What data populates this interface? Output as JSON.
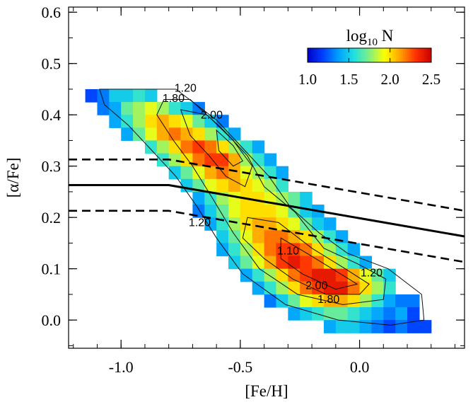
{
  "chart_data": {
    "type": "heatmap",
    "title": "",
    "xlabel": "[Fe/H]",
    "ylabel": "[α/Fe]",
    "xlim": [
      -1.22,
      0.44
    ],
    "ylim": [
      -0.055,
      0.61
    ],
    "x_ticks": [
      {
        "value": -1.0,
        "label": "-1.0"
      },
      {
        "value": -0.5,
        "label": "-0.5"
      },
      {
        "value": 0.0,
        "label": "0.0"
      }
    ],
    "y_ticks": [
      {
        "value": 0.0,
        "label": "0.0"
      },
      {
        "value": 0.1,
        "label": "0.1"
      },
      {
        "value": 0.2,
        "label": "0.2"
      },
      {
        "value": 0.3,
        "label": "0.3"
      },
      {
        "value": 0.4,
        "label": "0.4"
      },
      {
        "value": 0.5,
        "label": "0.5"
      },
      {
        "value": 0.6,
        "label": "0.6"
      }
    ],
    "colorbar": {
      "title": "log",
      "title_subscript": "10",
      "title_suffix": " N",
      "range": [
        1.0,
        2.5
      ],
      "ticks": [
        {
          "value": 1.0,
          "label": "1.0"
        },
        {
          "value": 1.5,
          "label": "1.5"
        },
        {
          "value": 2.0,
          "label": "2.0"
        },
        {
          "value": 2.5,
          "label": "2.5"
        }
      ],
      "colormap": [
        "#0000c8",
        "#0040ff",
        "#00a0ff",
        "#20e0e0",
        "#80f080",
        "#ffff00",
        "#ffa000",
        "#ff3000",
        "#c80000"
      ]
    },
    "density_grid": {
      "bin_width": 0.05,
      "bin_height": 0.025,
      "rows": [
        {
          "alpha": 0.4375,
          "fe_start": -1.125,
          "values": [
            1.2,
            1.3,
            1.5,
            1.5,
            1.6,
            1.5
          ]
        },
        {
          "alpha": 0.4125,
          "fe_start": -1.075,
          "values": [
            1.3,
            1.4,
            1.7,
            1.8,
            1.9,
            1.8,
            1.6,
            1.5,
            1.3
          ]
        },
        {
          "alpha": 0.3875,
          "fe_start": -1.025,
          "values": [
            1.4,
            1.6,
            1.8,
            2.0,
            2.1,
            2.0,
            1.9,
            1.7,
            1.5,
            1.3
          ]
        },
        {
          "alpha": 0.3625,
          "fe_start": -0.975,
          "values": [
            1.4,
            1.7,
            1.9,
            2.1,
            2.2,
            2.1,
            2.0,
            1.8,
            1.6,
            1.4
          ]
        },
        {
          "alpha": 0.3375,
          "fe_start": -0.875,
          "values": [
            1.6,
            1.8,
            2.0,
            2.2,
            2.3,
            2.2,
            2.0,
            1.8,
            1.6,
            1.4
          ]
        },
        {
          "alpha": 0.3125,
          "fe_start": -0.825,
          "values": [
            1.6,
            1.8,
            2.0,
            2.2,
            2.3,
            2.3,
            2.1,
            1.8,
            1.6,
            1.4
          ]
        },
        {
          "alpha": 0.2875,
          "fe_start": -0.775,
          "values": [
            1.5,
            1.7,
            1.9,
            2.1,
            2.2,
            2.1,
            1.9,
            1.8,
            1.6,
            1.4
          ]
        },
        {
          "alpha": 0.2625,
          "fe_start": -0.725,
          "values": [
            1.5,
            1.7,
            1.9,
            2.0,
            2.1,
            2.0,
            1.9,
            1.8,
            1.6
          ]
        },
        {
          "alpha": 0.2375,
          "fe_start": -0.675,
          "values": [
            1.4,
            1.6,
            1.8,
            1.9,
            2.0,
            2.0,
            1.9,
            1.8,
            1.7,
            1.5
          ]
        },
        {
          "alpha": 0.2125,
          "fe_start": -0.675,
          "values": [
            1.3,
            1.5,
            1.7,
            1.9,
            2.0,
            2.0,
            2.0,
            1.9,
            1.7,
            1.5,
            1.4
          ]
        },
        {
          "alpha": 0.1875,
          "fe_start": -0.625,
          "values": [
            1.4,
            1.6,
            1.8,
            2.0,
            2.1,
            2.1,
            2.0,
            1.9,
            1.7,
            1.5,
            1.4
          ]
        },
        {
          "alpha": 0.1625,
          "fe_start": -0.575,
          "values": [
            1.5,
            1.7,
            1.9,
            2.1,
            2.2,
            2.2,
            2.1,
            2.0,
            1.8,
            1.6,
            1.4
          ]
        },
        {
          "alpha": 0.1375,
          "fe_start": -0.575,
          "values": [
            1.4,
            1.6,
            1.8,
            2.0,
            2.2,
            2.3,
            2.3,
            2.2,
            2.0,
            1.8,
            1.6,
            1.4
          ]
        },
        {
          "alpha": 0.1125,
          "fe_start": -0.525,
          "values": [
            1.5,
            1.7,
            1.9,
            2.1,
            2.3,
            2.4,
            2.3,
            2.2,
            2.0,
            1.8,
            1.6,
            1.4
          ]
        },
        {
          "alpha": 0.0875,
          "fe_start": -0.475,
          "values": [
            1.4,
            1.6,
            1.8,
            2.0,
            2.2,
            2.3,
            2.4,
            2.4,
            2.3,
            2.1,
            1.9,
            1.7,
            1.5
          ]
        },
        {
          "alpha": 0.0625,
          "fe_start": -0.425,
          "values": [
            1.4,
            1.6,
            1.8,
            2.0,
            2.2,
            2.3,
            2.4,
            2.4,
            2.2,
            2.0,
            1.8,
            1.6
          ]
        },
        {
          "alpha": 0.0375,
          "fe_start": -0.375,
          "values": [
            1.3,
            1.5,
            1.7,
            1.9,
            2.0,
            2.1,
            2.1,
            2.0,
            1.8,
            1.6,
            1.4,
            1.3,
            1.3
          ]
        },
        {
          "alpha": 0.0125,
          "fe_start": -0.275,
          "values": [
            1.4,
            1.5,
            1.6,
            1.7,
            1.7,
            1.6,
            1.5,
            1.4,
            1.3,
            1.4,
            1.2
          ]
        },
        {
          "alpha": -0.0125,
          "fe_start": -0.125,
          "values": [
            1.4,
            1.5,
            1.5,
            1.4,
            1.3,
            1.2,
            1.3,
            1.2,
            1.2
          ]
        }
      ]
    },
    "separator_lines": [
      {
        "name": "solid",
        "style": "solid",
        "points": [
          [
            -1.22,
            0.263
          ],
          [
            -0.8,
            0.263
          ],
          [
            0.44,
            0.163
          ]
        ]
      },
      {
        "name": "upper-dashed",
        "style": "dashed",
        "points": [
          [
            -1.22,
            0.313
          ],
          [
            -0.8,
            0.313
          ],
          [
            0.44,
            0.213
          ]
        ]
      },
      {
        "name": "lower-dashed",
        "style": "dashed",
        "points": [
          [
            -1.22,
            0.213
          ],
          [
            -0.8,
            0.213
          ],
          [
            0.44,
            0.113
          ]
        ]
      }
    ],
    "contours": [
      {
        "level": 1.2,
        "points": [
          [
            -1.09,
            0.45
          ],
          [
            -0.77,
            0.45
          ],
          [
            -0.6,
            0.39
          ],
          [
            -0.48,
            0.33
          ],
          [
            -0.38,
            0.28
          ],
          [
            -0.29,
            0.22
          ],
          [
            -0.17,
            0.17
          ],
          [
            -0.05,
            0.13
          ],
          [
            0.12,
            0.1
          ],
          [
            0.26,
            0.05
          ],
          [
            0.27,
            0.0
          ],
          [
            0.13,
            -0.01
          ],
          [
            -0.09,
            0.0
          ],
          [
            -0.31,
            0.03
          ],
          [
            -0.49,
            0.09
          ],
          [
            -0.6,
            0.16
          ],
          [
            -0.68,
            0.22
          ],
          [
            -0.77,
            0.28
          ],
          [
            -0.87,
            0.33
          ],
          [
            -0.97,
            0.38
          ],
          [
            -1.07,
            0.42
          ]
        ]
      },
      {
        "level": 1.8,
        "points": [
          [
            -0.82,
            0.43
          ],
          [
            -0.71,
            0.43
          ],
          [
            -0.57,
            0.37
          ],
          [
            -0.47,
            0.32
          ],
          [
            -0.4,
            0.26
          ],
          [
            -0.27,
            0.21
          ],
          [
            -0.15,
            0.14
          ],
          [
            -0.01,
            0.11
          ],
          [
            0.11,
            0.08
          ],
          [
            0.1,
            0.04
          ],
          [
            -0.07,
            0.03
          ],
          [
            -0.26,
            0.05
          ],
          [
            -0.42,
            0.1
          ],
          [
            -0.53,
            0.17
          ],
          [
            -0.62,
            0.24
          ],
          [
            -0.7,
            0.3
          ],
          [
            -0.78,
            0.35
          ],
          [
            -0.85,
            0.4
          ]
        ]
      },
      {
        "level": 2.0,
        "points": [
          [
            -0.75,
            0.41
          ],
          [
            -0.64,
            0.4
          ],
          [
            -0.53,
            0.35
          ],
          [
            -0.45,
            0.3
          ],
          [
            -0.48,
            0.26
          ],
          [
            -0.56,
            0.28
          ],
          [
            -0.63,
            0.32
          ],
          [
            -0.71,
            0.36
          ]
        ]
      },
      {
        "level": 2.0,
        "points": [
          [
            -0.47,
            0.2
          ],
          [
            -0.34,
            0.19
          ],
          [
            -0.2,
            0.14
          ],
          [
            -0.06,
            0.1
          ],
          [
            0.04,
            0.07
          ],
          [
            0.0,
            0.05
          ],
          [
            -0.14,
            0.05
          ],
          [
            -0.28,
            0.08
          ],
          [
            -0.4,
            0.12
          ],
          [
            -0.49,
            0.16
          ]
        ]
      },
      {
        "level": 2.2,
        "points": [
          [
            -0.6,
            0.37
          ],
          [
            -0.53,
            0.34
          ],
          [
            -0.49,
            0.31
          ],
          [
            -0.53,
            0.3
          ],
          [
            -0.59,
            0.33
          ]
        ]
      },
      {
        "level": 2.2,
        "points": [
          [
            -0.33,
            0.16
          ],
          [
            -0.22,
            0.13
          ],
          [
            -0.08,
            0.09
          ],
          [
            -0.01,
            0.07
          ],
          [
            -0.1,
            0.06
          ],
          [
            -0.24,
            0.09
          ],
          [
            -0.33,
            0.12
          ]
        ]
      }
    ],
    "annotations": [
      {
        "text": "1.20",
        "x": -0.73,
        "y": 0.445
      },
      {
        "text": "1.80",
        "x": -0.78,
        "y": 0.425
      },
      {
        "text": "2.00",
        "x": -0.62,
        "y": 0.393
      },
      {
        "text": "1.20",
        "x": -0.67,
        "y": 0.183
      },
      {
        "text": "1.10",
        "x": -0.3,
        "y": 0.128
      },
      {
        "text": "1.20",
        "x": 0.05,
        "y": 0.085
      },
      {
        "text": "2.00",
        "x": -0.18,
        "y": 0.06
      },
      {
        "text": "1.80",
        "x": -0.13,
        "y": 0.033
      }
    ]
  }
}
